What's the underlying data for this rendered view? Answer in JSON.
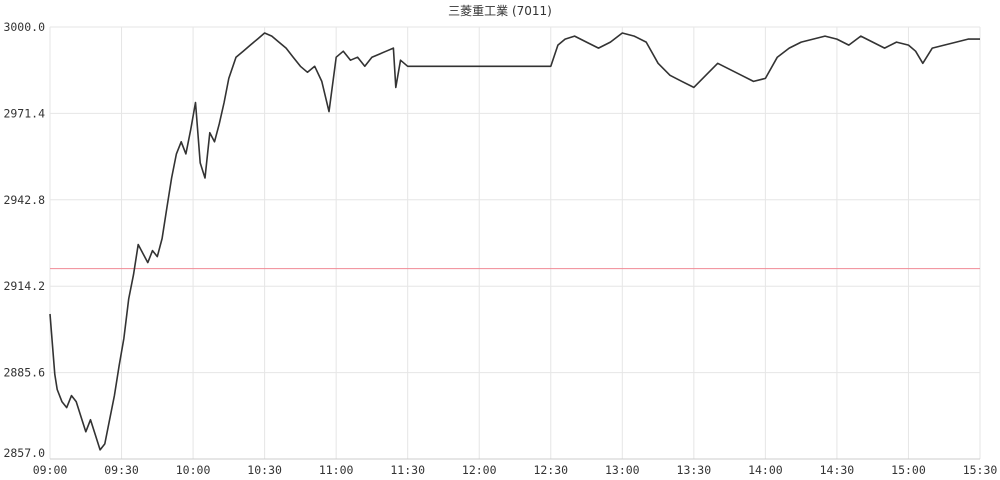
{
  "chart_data": {
    "type": "line",
    "title": "三菱重工業 (7011)",
    "xlabel": "",
    "ylabel": "",
    "x_ticks": [
      "09:00",
      "09:30",
      "10:00",
      "10:30",
      "11:00",
      "11:30",
      "12:00",
      "12:30",
      "13:00",
      "13:30",
      "14:00",
      "14:30",
      "15:00",
      "15:30"
    ],
    "y_ticks": [
      "2857.0",
      "2885.6",
      "2914.2",
      "2942.8",
      "2971.4",
      "3000.0"
    ],
    "ylim": [
      2857.0,
      3000.0
    ],
    "xlim": [
      "09:00",
      "15:30"
    ],
    "grid": true,
    "reference_line": {
      "value": 2920.0,
      "color": "#f08a94"
    },
    "series_color": "#333333",
    "series": [
      {
        "x": [
          "09:00",
          "09:02",
          "09:03",
          "09:05",
          "09:07",
          "09:09",
          "09:11",
          "09:13",
          "09:15",
          "09:17",
          "09:19",
          "09:21",
          "09:23",
          "09:25",
          "09:27",
          "09:29",
          "09:31",
          "09:33",
          "09:35",
          "09:37",
          "09:39",
          "09:41",
          "09:43",
          "09:45",
          "09:47",
          "09:49",
          "09:51",
          "09:53",
          "09:55",
          "09:57",
          "09:59",
          "10:01",
          "10:03",
          "10:05",
          "10:07",
          "10:09",
          "10:11",
          "10:13",
          "10:15",
          "10:18",
          "10:21",
          "10:24",
          "10:27",
          "10:30",
          "10:33",
          "10:36",
          "10:39",
          "10:42",
          "10:45",
          "10:48",
          "10:51",
          "10:54",
          "10:57",
          "11:00",
          "11:03",
          "11:06",
          "11:09",
          "11:12",
          "11:15",
          "11:18",
          "11:21",
          "11:24",
          "11:25",
          "11:27",
          "11:30",
          "12:30",
          "12:33",
          "12:36",
          "12:40",
          "12:45",
          "12:50",
          "12:55",
          "13:00",
          "13:05",
          "13:10",
          "13:15",
          "13:20",
          "13:25",
          "13:30",
          "13:35",
          "13:40",
          "13:45",
          "13:50",
          "13:55",
          "14:00",
          "14:05",
          "14:10",
          "14:15",
          "14:20",
          "14:25",
          "14:30",
          "14:35",
          "14:40",
          "14:45",
          "14:50",
          "14:55",
          "15:00",
          "15:03",
          "15:06",
          "15:10",
          "15:15",
          "15:20",
          "15:25",
          "15:30"
        ],
        "values": [
          2905,
          2885,
          2880,
          2876,
          2874,
          2878,
          2876,
          2871,
          2866,
          2870,
          2865,
          2860,
          2862,
          2870,
          2878,
          2888,
          2897,
          2910,
          2918,
          2928,
          2925,
          2922,
          2926,
          2924,
          2930,
          2940,
          2950,
          2958,
          2962,
          2958,
          2966,
          2975,
          2955,
          2950,
          2965,
          2962,
          2968,
          2975,
          2983,
          2990,
          2992,
          2994,
          2996,
          2998,
          2997,
          2995,
          2993,
          2990,
          2987,
          2985,
          2987,
          2982,
          2972,
          2990,
          2992,
          2989,
          2990,
          2987,
          2990,
          2991,
          2992,
          2993,
          2980,
          2989,
          2987,
          2987,
          2994,
          2996,
          2997,
          2995,
          2993,
          2995,
          2998,
          2997,
          2995,
          2988,
          2984,
          2982,
          2980,
          2984,
          2988,
          2986,
          2984,
          2982,
          2983,
          2990,
          2993,
          2995,
          2996,
          2997,
          2996,
          2994,
          2997,
          2995,
          2993,
          2995,
          2994,
          2992,
          2988,
          2993,
          2994,
          2995,
          2996,
          2996
        ]
      }
    ]
  }
}
